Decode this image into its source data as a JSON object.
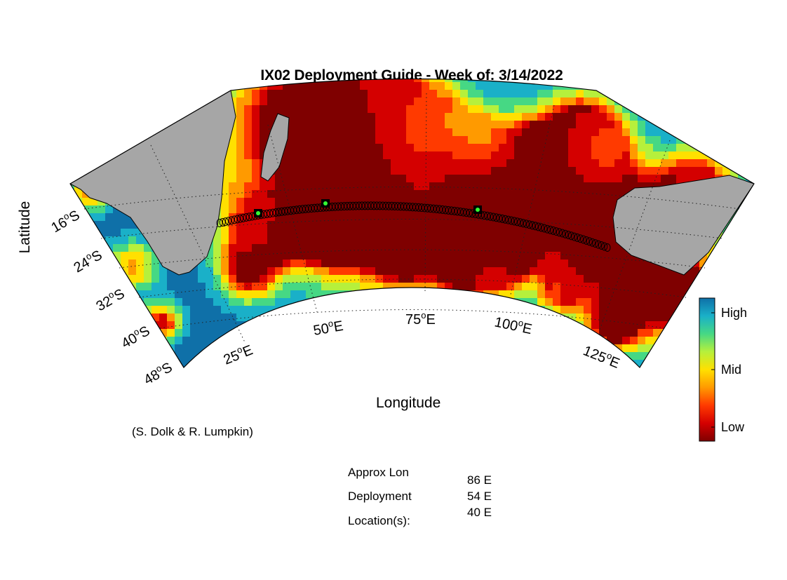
{
  "title": "IX02 Deployment Guide - Week of: 3/14/2022",
  "axis": {
    "xlabel": "Longitude",
    "ylabel": "Latitude"
  },
  "lat_ticks": [
    {
      "deg": "16",
      "hem": "S"
    },
    {
      "deg": "24",
      "hem": "S"
    },
    {
      "deg": "32",
      "hem": "S"
    },
    {
      "deg": "40",
      "hem": "S"
    },
    {
      "deg": "48",
      "hem": "S"
    }
  ],
  "lon_ticks": [
    {
      "deg": "25",
      "hem": "E"
    },
    {
      "deg": "50",
      "hem": "E"
    },
    {
      "deg": "75",
      "hem": "E"
    },
    {
      "deg": "100",
      "hem": "E"
    },
    {
      "deg": "125",
      "hem": "E"
    }
  ],
  "colorbar": {
    "labels": {
      "high": "High",
      "mid": "Mid",
      "low": "Low"
    },
    "colors": [
      "#7f0000",
      "#d40000",
      "#ff3a00",
      "#ff9a00",
      "#ffe000",
      "#b6f03c",
      "#46d884",
      "#1ab0c8",
      "#0f70a8"
    ]
  },
  "credit": "(S. Dolk & R. Lumpkin)",
  "info": {
    "label_line1": "Approx Lon",
    "label_line2": "Deployment",
    "label_line3": "Location(s):",
    "values": [
      "86 E",
      "54 E",
      "40 E"
    ]
  },
  "land_color": "#a6a6a6",
  "track_markers": [
    "deployment-marker",
    "deployment-marker",
    "deployment-marker"
  ]
}
